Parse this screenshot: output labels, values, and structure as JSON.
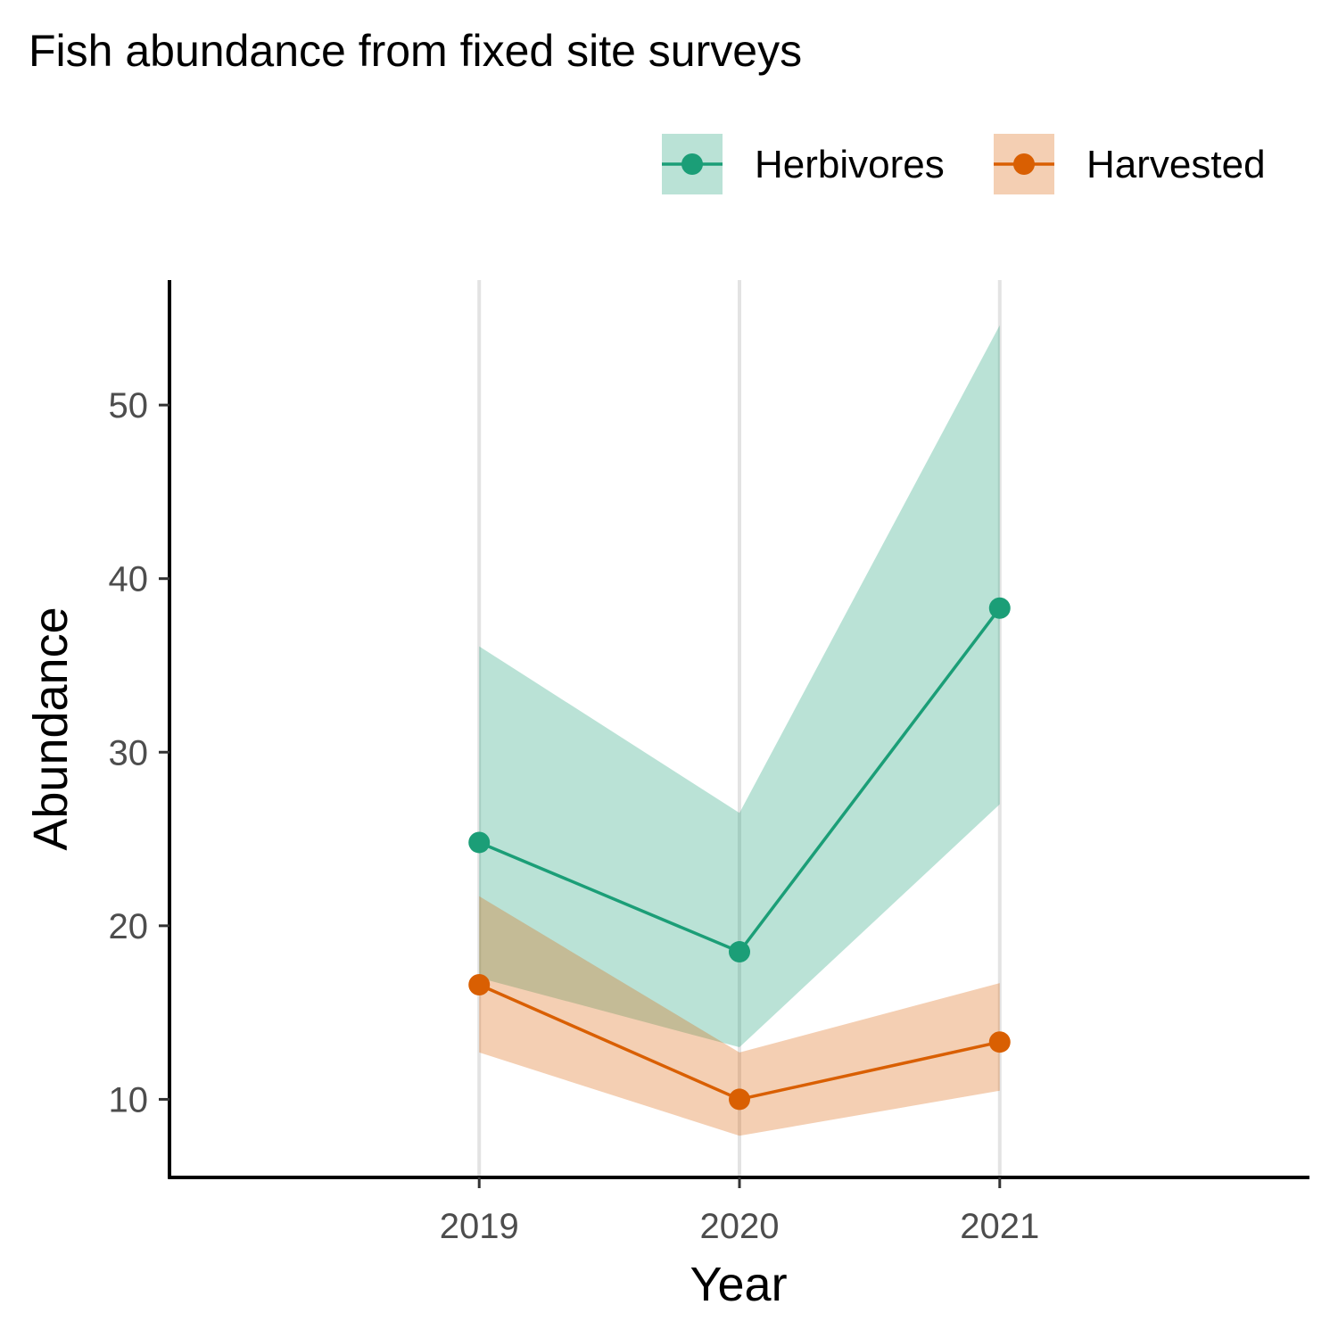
{
  "chart_data": {
    "type": "line",
    "title": "Fish abundance from fixed site surveys",
    "xlabel": "Year",
    "ylabel": "Abundance",
    "x": [
      2019,
      2020,
      2021
    ],
    "xlim": [
      2017.81,
      2022.19
    ],
    "ylim": [
      5.5,
      57.2
    ],
    "yticks": [
      10,
      20,
      30,
      40,
      50
    ],
    "grid": "vertical major at x ticks",
    "legend_position": "top-right",
    "series": [
      {
        "name": "Herbivores",
        "color": "#1b9e77",
        "ribbon_color": "#bbe3d8",
        "values": [
          24.8,
          18.5,
          38.3
        ],
        "lower": [
          17.0,
          13.0,
          27.0
        ],
        "upper": [
          36.1,
          26.5,
          54.6
        ]
      },
      {
        "name": "Harvested",
        "color": "#d95f02",
        "ribbon_color": "#f5cfb3",
        "values": [
          16.6,
          10.0,
          13.3
        ],
        "lower": [
          12.7,
          7.9,
          10.5
        ],
        "upper": [
          21.7,
          12.7,
          16.7
        ]
      }
    ]
  }
}
